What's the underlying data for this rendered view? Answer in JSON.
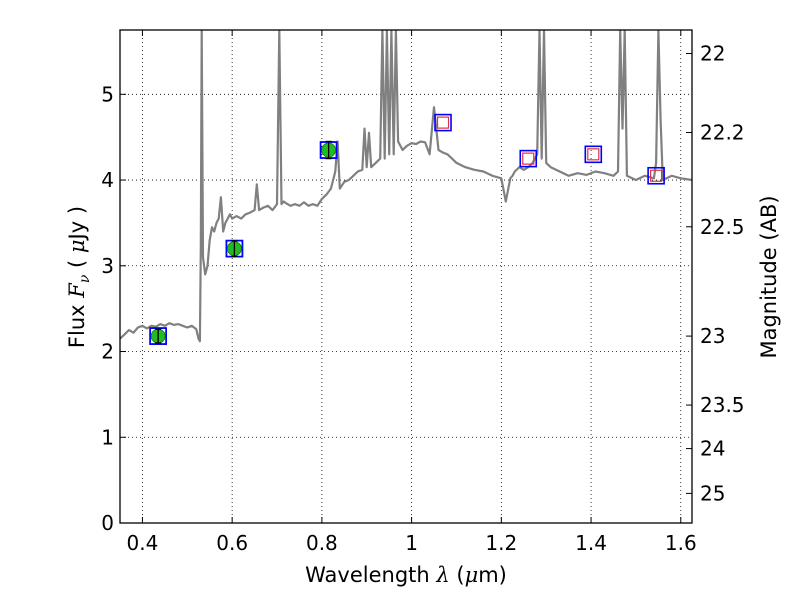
{
  "chart_data": {
    "type": "line",
    "xlabel": "Wavelength  λ (μm)",
    "ylabel": "Flux  F_ν  ( μJy )",
    "ylabel_right": "Magnitude (AB)",
    "xlim": [
      0.35,
      1.625
    ],
    "ylim": [
      0,
      5.75
    ],
    "grid": true,
    "x_ticks": [
      0.4,
      0.6,
      0.8,
      1.0,
      1.2,
      1.4,
      1.6
    ],
    "x_tick_labels": [
      "0.4",
      "0.6",
      "0.8",
      "1",
      "1.2",
      "1.4",
      "1.6"
    ],
    "y_ticks": [
      0,
      1,
      2,
      3,
      4,
      5
    ],
    "y_tick_labels": [
      "0",
      "1",
      "2",
      "3",
      "4",
      "5"
    ],
    "right_ticks": [
      22,
      22.2,
      22.5,
      23,
      23.5,
      24,
      25
    ],
    "right_tick_labels": [
      "22",
      "22.2",
      "22.5",
      "23",
      "23.5",
      "24",
      "25"
    ],
    "series": [
      {
        "kind": "spectrum",
        "color": "#808080",
        "x": [
          0.35,
          0.36,
          0.37,
          0.38,
          0.39,
          0.4,
          0.41,
          0.42,
          0.43,
          0.44,
          0.45,
          0.46,
          0.47,
          0.48,
          0.49,
          0.5,
          0.51,
          0.52,
          0.525,
          0.528,
          0.53,
          0.532,
          0.535,
          0.54,
          0.545,
          0.55,
          0.555,
          0.56,
          0.565,
          0.57,
          0.575,
          0.58,
          0.585,
          0.59,
          0.595,
          0.6,
          0.61,
          0.62,
          0.63,
          0.64,
          0.65,
          0.655,
          0.66,
          0.67,
          0.68,
          0.69,
          0.7,
          0.705,
          0.71,
          0.715,
          0.72,
          0.73,
          0.74,
          0.75,
          0.76,
          0.77,
          0.78,
          0.79,
          0.8,
          0.81,
          0.82,
          0.83,
          0.835,
          0.84,
          0.85,
          0.86,
          0.87,
          0.88,
          0.89,
          0.895,
          0.9,
          0.905,
          0.91,
          0.92,
          0.93,
          0.935,
          0.94,
          0.945,
          0.95,
          0.955,
          0.96,
          0.965,
          0.97,
          0.98,
          0.99,
          1.0,
          1.01,
          1.02,
          1.03,
          1.04,
          1.05,
          1.06,
          1.07,
          1.08,
          1.09,
          1.1,
          1.12,
          1.14,
          1.16,
          1.18,
          1.2,
          1.21,
          1.22,
          1.225,
          1.23,
          1.24,
          1.25,
          1.26,
          1.27,
          1.28,
          1.285,
          1.29,
          1.295,
          1.3,
          1.31,
          1.33,
          1.35,
          1.37,
          1.39,
          1.41,
          1.43,
          1.45,
          1.46,
          1.465,
          1.47,
          1.475,
          1.48,
          1.5,
          1.52,
          1.54,
          1.545,
          1.55,
          1.555,
          1.56,
          1.58,
          1.6,
          1.625
        ],
        "y": [
          2.15,
          2.2,
          2.25,
          2.22,
          2.28,
          2.3,
          2.27,
          2.3,
          2.29,
          2.32,
          2.3,
          2.33,
          2.31,
          2.32,
          2.3,
          2.28,
          2.3,
          2.26,
          2.15,
          2.12,
          3.2,
          5.75,
          3.1,
          2.9,
          3.0,
          3.3,
          3.45,
          3.4,
          3.5,
          3.55,
          3.8,
          3.4,
          3.5,
          3.55,
          3.6,
          3.55,
          3.58,
          3.55,
          3.6,
          3.62,
          3.65,
          3.95,
          3.65,
          3.68,
          3.7,
          3.65,
          3.72,
          5.75,
          3.72,
          3.75,
          3.73,
          3.7,
          3.72,
          3.7,
          3.74,
          3.7,
          3.72,
          3.7,
          3.78,
          3.83,
          3.9,
          4.1,
          4.45,
          3.9,
          3.98,
          4.0,
          4.05,
          4.1,
          4.12,
          4.6,
          4.15,
          4.55,
          4.15,
          4.2,
          4.25,
          5.75,
          4.25,
          5.75,
          4.3,
          5.75,
          4.3,
          5.75,
          4.45,
          4.35,
          4.4,
          4.43,
          4.42,
          4.45,
          4.44,
          4.3,
          4.85,
          4.35,
          4.32,
          4.3,
          4.25,
          4.2,
          4.15,
          4.12,
          4.1,
          4.05,
          4.02,
          3.75,
          4.02,
          4.05,
          4.1,
          4.15,
          4.12,
          4.15,
          4.2,
          4.3,
          5.75,
          4.25,
          5.75,
          4.2,
          4.15,
          4.1,
          4.05,
          4.08,
          4.06,
          4.1,
          4.08,
          4.05,
          4.1,
          5.75,
          4.6,
          5.75,
          4.05,
          4.0,
          4.05,
          4.02,
          4.2,
          5.75,
          4.7,
          4.0,
          4.05,
          4.02,
          4.0
        ]
      },
      {
        "kind": "observed photometry",
        "marker": "circle",
        "color": "#22bb22",
        "x": [
          0.435,
          0.605,
          0.815
        ],
        "y": [
          2.18,
          3.2,
          4.35
        ],
        "yerr": [
          0.08,
          0.09,
          0.1
        ]
      },
      {
        "kind": "model photometry",
        "marker": "square",
        "color": "#0000ff",
        "x": [
          0.435,
          0.605,
          0.815,
          1.07,
          1.26,
          1.405,
          1.545
        ],
        "y": [
          2.18,
          3.2,
          4.35,
          4.67,
          4.25,
          4.3,
          4.05
        ]
      },
      {
        "kind": "upper limit",
        "marker": "square",
        "color": "#dd3344",
        "x": [
          1.07,
          1.26,
          1.405,
          1.545
        ],
        "y": [
          4.67,
          4.25,
          4.3,
          4.05
        ]
      }
    ]
  }
}
